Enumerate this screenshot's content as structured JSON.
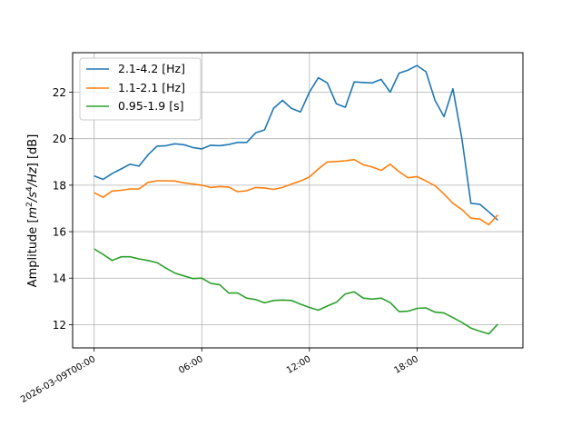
{
  "chart_data": {
    "type": "line",
    "ylabel_prefix": "Amplitude [",
    "ylabel_math_m": "m",
    "ylabel_math_sup1": "2",
    "ylabel_math_mid": "/s",
    "ylabel_math_sup2": "4",
    "ylabel_math_end": "/Hz",
    "ylabel_suffix": "] [dB]",
    "xlim_hours": [
      -1.2,
      23.9
    ],
    "ylim": [
      11.0,
      23.7
    ],
    "yticks": [
      12,
      14,
      16,
      18,
      20,
      22
    ],
    "xticks": [
      {
        "hour": 0,
        "label": "2026-03-09T00:00"
      },
      {
        "hour": 6,
        "label": "06:00"
      },
      {
        "hour": 12,
        "label": "12:00"
      },
      {
        "hour": 18,
        "label": "18:00"
      }
    ],
    "grid": true,
    "legend_position": "upper-left",
    "x_hours": [
      0,
      0.5,
      1,
      1.5,
      2,
      2.5,
      3,
      3.5,
      4,
      4.5,
      5,
      5.5,
      6,
      6.5,
      7,
      7.5,
      8,
      8.5,
      9,
      9.5,
      10,
      10.5,
      11,
      11.5,
      12,
      12.5,
      13,
      13.5,
      14,
      14.5,
      15,
      15.5,
      16,
      16.5,
      17,
      17.5,
      18,
      18.5,
      19,
      19.5,
      20,
      20.5,
      21,
      21.5,
      22,
      22.5
    ],
    "series": [
      {
        "name": "2.1-4.2 [Hz]",
        "color": "#1f77b4",
        "values": [
          18.4,
          18.25,
          18.5,
          18.7,
          18.9,
          18.82,
          19.3,
          19.68,
          19.7,
          19.78,
          19.74,
          19.62,
          19.56,
          19.72,
          19.7,
          19.75,
          19.84,
          19.84,
          20.25,
          20.38,
          21.3,
          21.65,
          21.3,
          21.15,
          22.0,
          22.62,
          22.4,
          21.5,
          21.35,
          22.44,
          22.42,
          22.4,
          22.55,
          22.0,
          22.82,
          22.95,
          23.15,
          22.88,
          21.65,
          20.95,
          22.15,
          20.0,
          17.22,
          17.18,
          16.85,
          16.5
        ]
      },
      {
        "name": "1.1-2.1 [Hz]",
        "color": "#ff7f0e",
        "values": [
          17.68,
          17.48,
          17.75,
          17.78,
          17.84,
          17.84,
          18.12,
          18.19,
          18.19,
          18.18,
          18.1,
          18.05,
          18.0,
          17.9,
          17.94,
          17.92,
          17.72,
          17.76,
          17.9,
          17.88,
          17.82,
          17.9,
          18.05,
          18.18,
          18.35,
          18.7,
          19.0,
          19.02,
          19.05,
          19.1,
          18.88,
          18.78,
          18.64,
          18.9,
          18.58,
          18.32,
          18.37,
          18.18,
          17.98,
          17.62,
          17.22,
          16.95,
          16.58,
          16.54,
          16.3,
          16.72
        ]
      },
      {
        "name": "0.95-1.9 [s]",
        "color": "#2ca02c",
        "values": [
          15.26,
          15.02,
          14.76,
          14.92,
          14.92,
          14.83,
          14.76,
          14.67,
          14.43,
          14.22,
          14.1,
          13.98,
          14.0,
          13.78,
          13.72,
          13.36,
          13.36,
          13.14,
          13.08,
          12.94,
          13.04,
          13.06,
          13.04,
          12.88,
          12.74,
          12.62,
          12.8,
          12.96,
          13.32,
          13.41,
          13.14,
          13.1,
          13.14,
          12.95,
          12.56,
          12.58,
          12.7,
          12.72,
          12.54,
          12.5,
          12.3,
          12.1,
          11.85,
          11.72,
          11.6,
          12.02
        ]
      }
    ]
  }
}
